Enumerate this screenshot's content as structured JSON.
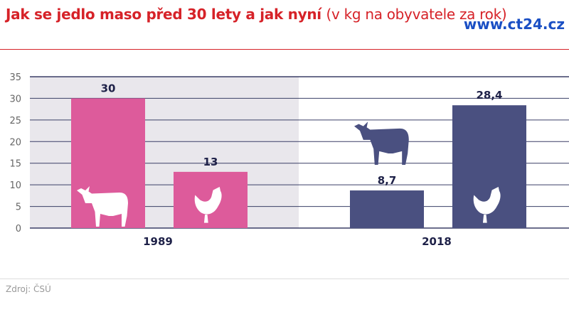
{
  "title": {
    "bold": "Jak se jedlo maso před 30 lety a jak nyní",
    "sub": "(v kg na obyvatele za rok)"
  },
  "brand": "www.ct24.cz",
  "source": "Zdroj: ČSÚ",
  "colors": {
    "y1989": "#dd5b9b",
    "y2018": "#4a5080",
    "highlight_bg": "#e9e7ec",
    "title": "#d62228"
  },
  "chart_data": {
    "type": "bar",
    "ylim": [
      0,
      35
    ],
    "yticks": [
      0,
      5,
      10,
      15,
      20,
      25,
      30,
      35
    ],
    "grid": true,
    "categories": [
      "1989",
      "2018"
    ],
    "series": [
      {
        "icon": "cow-icon",
        "values": [
          30,
          8.7
        ],
        "labels": [
          "30",
          "8,7"
        ]
      },
      {
        "icon": "chicken-icon",
        "values": [
          13,
          28.4
        ],
        "labels": [
          "13",
          "28,4"
        ]
      }
    ]
  }
}
